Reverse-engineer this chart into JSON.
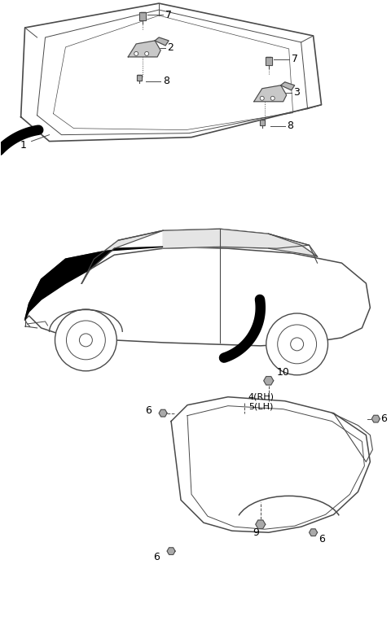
{
  "bg_color": "#ffffff",
  "line_color": "#4a4a4a",
  "label_color": "#000000",
  "fig_width": 4.8,
  "fig_height": 7.63,
  "dpi": 100
}
